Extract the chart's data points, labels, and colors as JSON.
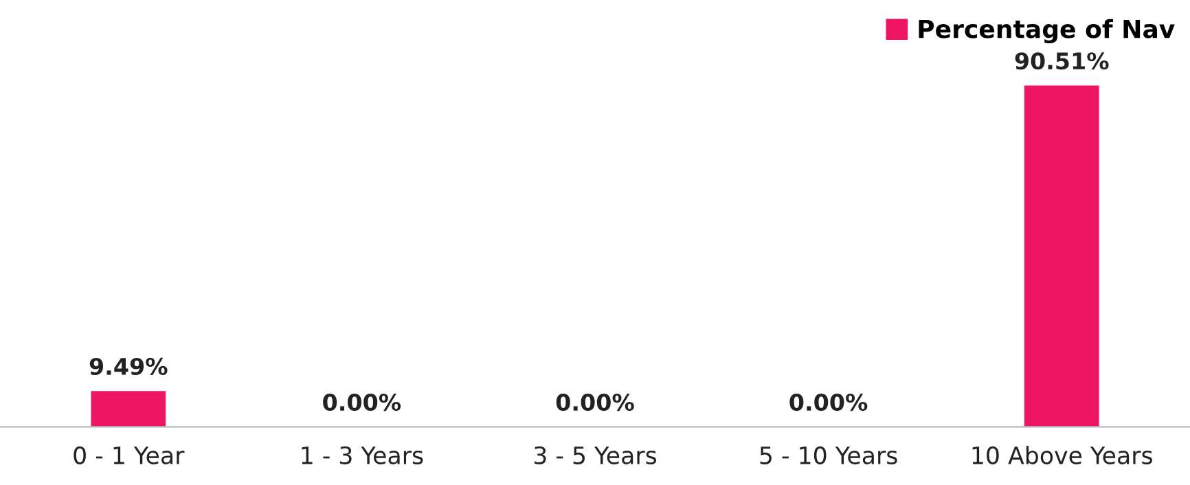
{
  "chart_data": {
    "type": "bar",
    "categories": [
      "0 - 1 Year",
      "1 - 3 Years",
      "3 - 5 Years",
      "5 - 10 Years",
      "10 Above Years"
    ],
    "series": [
      {
        "name": "Percentage of Nav",
        "color": "#ee1562",
        "values": [
          9.49,
          0.0,
          0.0,
          0.0,
          90.51
        ],
        "value_labels": [
          "9.49%",
          "0.00%",
          "0.00%",
          "0.00%",
          "90.51%"
        ]
      }
    ],
    "legend": "top right",
    "grid": false
  }
}
